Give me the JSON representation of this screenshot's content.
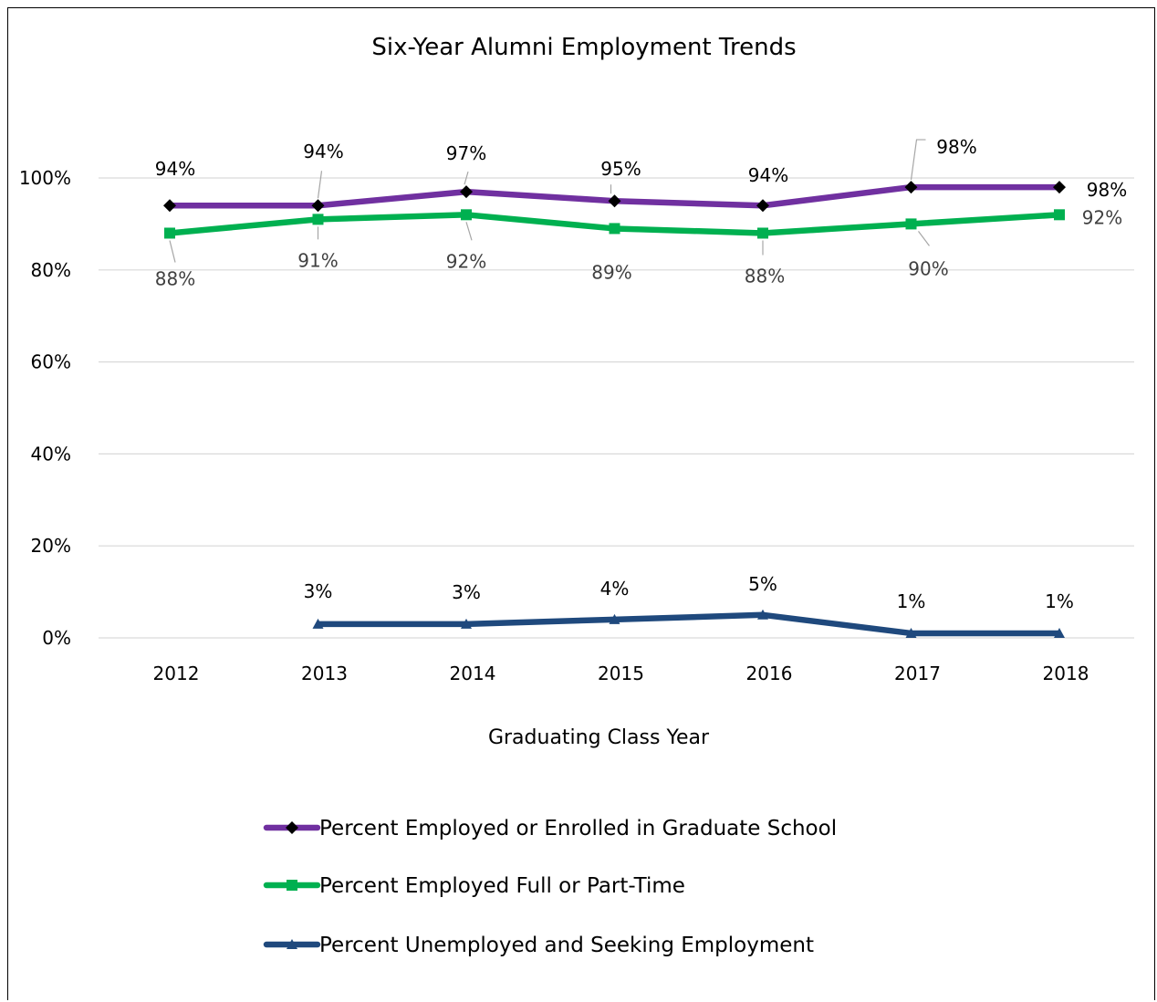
{
  "chart_data": {
    "type": "line",
    "title": "Six-Year Alumni Employment Trends",
    "xlabel": "Graduating Class Year",
    "ylabel": "",
    "categories": [
      "2012",
      "2013",
      "2014",
      "2015",
      "2016",
      "2017",
      "2018"
    ],
    "ylim": [
      0,
      100
    ],
    "yticks": [
      0,
      20,
      40,
      60,
      80,
      100
    ],
    "ytick_labels": [
      "0%",
      "20%",
      "40%",
      "60%",
      "80%",
      "100%"
    ],
    "grid": "horizontal",
    "legend_position": "bottom",
    "series": [
      {
        "name": "Percent Employed or Enrolled in Graduate School",
        "color": "#7030a0",
        "marker": "diamond",
        "marker_color": "#000000",
        "values": [
          94,
          94,
          97,
          95,
          94,
          98,
          98
        ],
        "labels": [
          "94%",
          "94%",
          "97%",
          "95%",
          "94%",
          "98%",
          "98%"
        ]
      },
      {
        "name": "Percent Employed Full or Part-Time",
        "color": "#00b050",
        "marker": "square",
        "marker_color": "#00b050",
        "values": [
          88,
          91,
          92,
          89,
          88,
          90,
          92
        ],
        "labels": [
          "88%",
          "91%",
          "92%",
          "89%",
          "88%",
          "90%",
          "92%"
        ]
      },
      {
        "name": "Percent Unemployed and Seeking Employment",
        "color": "#1f497d",
        "marker": "triangle",
        "marker_color": "#1f497d",
        "values": [
          null,
          3,
          3,
          4,
          5,
          1,
          1
        ],
        "labels": [
          "",
          "3%",
          "3%",
          "4%",
          "5%",
          "1%",
          "1%"
        ]
      }
    ]
  }
}
